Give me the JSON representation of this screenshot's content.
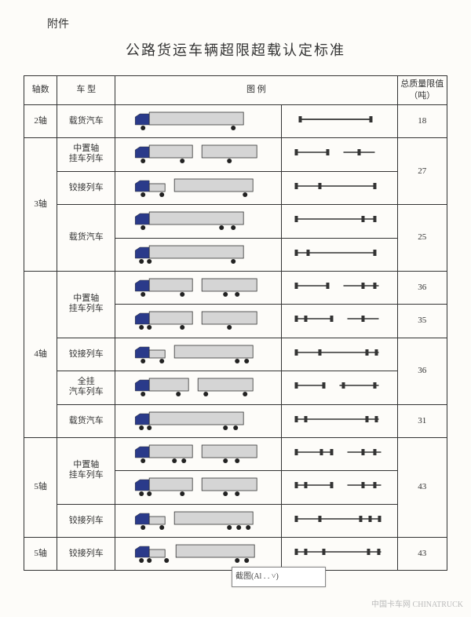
{
  "header": {
    "attachment_label": "附件",
    "title": "公路货运车辆超限超载认定标准"
  },
  "columns": {
    "axle": "轴数",
    "type": "车 型",
    "illustration": "图 例",
    "limit": "总质量限值（吨）"
  },
  "colors": {
    "cab": "#2a3a8a",
    "box": "#d5d5d5",
    "outline": "#333333",
    "axle_line": "#333333"
  },
  "rows": [
    {
      "axle_group": "2轴",
      "type": "载货汽车",
      "truck": "t1",
      "axle": "a2",
      "limit": "18",
      "axle_span": 1,
      "limit_span": 1
    },
    {
      "axle_group": "3轴",
      "type": "中置轴\n挂车列车",
      "truck": "t2a",
      "axle": "a3a",
      "limit": "27",
      "axle_span": 4,
      "limit_span": 2
    },
    {
      "type": "铰接列车",
      "truck": "t2b",
      "axle": "a3b"
    },
    {
      "type": "载货汽车",
      "truck": "t2c",
      "axle": "a3c",
      "limit": "25",
      "type_span": 2,
      "limit_span": 2
    },
    {
      "truck": "t2d",
      "axle": "a3d"
    },
    {
      "axle_group": "4轴",
      "type": "中置轴\n挂车列车",
      "truck": "t4a",
      "axle": "a4a",
      "limit": "36",
      "axle_span": 5,
      "type_span": 2,
      "limit_span": 1
    },
    {
      "truck": "t4b",
      "axle": "a4b",
      "limit": "35",
      "limit_span": 1
    },
    {
      "type": "铰接列车",
      "truck": "t4c",
      "axle": "a4c",
      "limit": "36",
      "limit_span": 2
    },
    {
      "type": "全挂\n汽车列车",
      "truck": "t4d",
      "axle": "a4d"
    },
    {
      "type": "载货汽车",
      "truck": "t4e",
      "axle": "a4e",
      "limit": "31",
      "limit_span": 1
    },
    {
      "axle_group": "5轴",
      "type": "中置轴\n挂车列车",
      "truck": "t5a",
      "axle": "a5a",
      "limit": "43",
      "axle_span": 3,
      "type_span": 2,
      "limit_span": 3
    },
    {
      "truck": "t5b",
      "axle": "a5b"
    },
    {
      "type": "铰接列车",
      "truck": "t5c",
      "axle": "a5c"
    },
    {
      "axle_group": "5轴",
      "type": "铰接列车",
      "truck": "t5d",
      "axle": "a5d",
      "limit": "43",
      "axle_span": 1,
      "limit_span": 1
    }
  ],
  "snip_tool": "截图(Al . . ˅)",
  "watermark": "中国卡车网\nCHINATRUCK"
}
